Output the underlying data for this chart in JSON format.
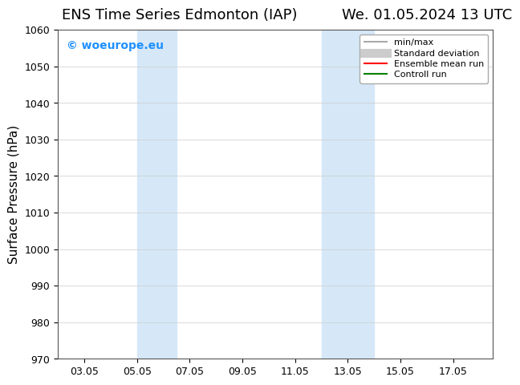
{
  "title_left": "ENS Time Series Edmonton (IAP)",
  "title_right": "We. 01.05.2024 13 UTC",
  "ylabel": "Surface Pressure (hPa)",
  "ylim": [
    970,
    1060
  ],
  "yticks": [
    970,
    980,
    990,
    1000,
    1010,
    1020,
    1030,
    1040,
    1050,
    1060
  ],
  "xlim_start": "2024-05-01",
  "xlim_end": "2024-05-17",
  "xtick_labels": [
    "03.05",
    "05.05",
    "07.05",
    "09.05",
    "11.05",
    "13.05",
    "15.05",
    "17.05"
  ],
  "xtick_positions": [
    2,
    4,
    6,
    8,
    10,
    12,
    14,
    16
  ],
  "shaded_regions": [
    {
      "xmin": 4.0,
      "xmax": 5.5,
      "color": "#d6e8f7"
    },
    {
      "xmin": 11.0,
      "xmax": 13.0,
      "color": "#d6e8f7"
    }
  ],
  "watermark_text": "© woeurope.eu",
  "watermark_color": "#1e90ff",
  "legend_items": [
    {
      "label": "min/max",
      "color": "#aaaaaa",
      "lw": 1.5,
      "style": "solid"
    },
    {
      "label": "Standard deviation",
      "color": "#cccccc",
      "lw": 8,
      "style": "solid"
    },
    {
      "label": "Ensemble mean run",
      "color": "#ff0000",
      "lw": 1.5,
      "style": "solid"
    },
    {
      "label": "Controll run",
      "color": "#008000",
      "lw": 1.5,
      "style": "solid"
    }
  ],
  "bg_color": "#ffffff",
  "grid_color": "#cccccc",
  "title_fontsize": 13,
  "axis_label_fontsize": 11,
  "tick_fontsize": 9
}
